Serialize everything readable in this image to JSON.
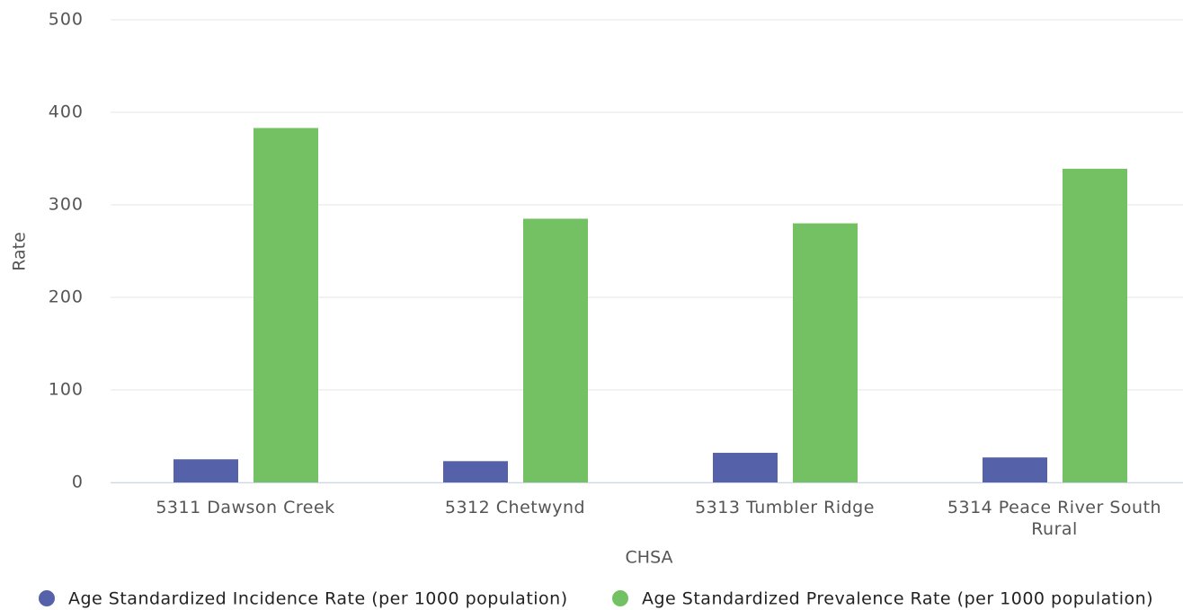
{
  "chart_data": {
    "type": "bar",
    "categories": [
      "5311 Dawson Creek",
      "5312 Chetwynd",
      "5313 Tumbler Ridge",
      "5314 Peace River South Rural"
    ],
    "series": [
      {
        "name": "Age Standardized Incidence Rate (per 1000 population)",
        "color": "#5561a8",
        "values": [
          25,
          23,
          32,
          27
        ]
      },
      {
        "name": "Age Standardized Prevalence Rate (per 1000 population)",
        "color": "#73c162",
        "values": [
          383,
          285,
          280,
          339
        ]
      }
    ],
    "xlabel": "CHSA",
    "ylabel": "Rate",
    "ylim": [
      0,
      500
    ],
    "yticks": [
      0,
      100,
      200,
      300,
      400,
      500
    ],
    "grid": true,
    "legend": "bottom"
  }
}
